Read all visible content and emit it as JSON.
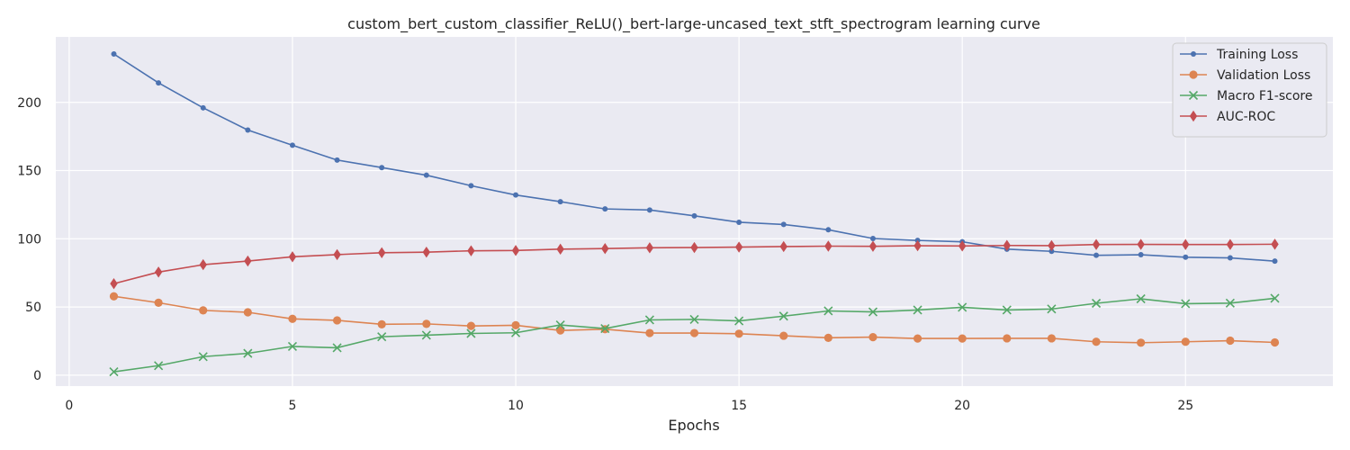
{
  "chart_data": {
    "type": "line",
    "title": "custom_bert_custom_classifier_ReLU()_bert-large-uncased_text_stft_spectrogram learning curve",
    "xlabel": "Epochs",
    "ylabel": "",
    "xlim": [
      -0.3,
      28.3
    ],
    "ylim": [
      -8,
      248
    ],
    "xticks": [
      0,
      5,
      10,
      15,
      20,
      25
    ],
    "yticks": [
      0,
      50,
      100,
      150,
      200
    ],
    "grid": true,
    "legend_position": "top-right",
    "x": [
      1,
      2,
      3,
      4,
      5,
      6,
      7,
      8,
      9,
      10,
      11,
      12,
      13,
      14,
      15,
      16,
      17,
      18,
      19,
      20,
      21,
      22,
      23,
      24,
      25,
      26,
      27
    ],
    "series": [
      {
        "name": "Training Loss",
        "color": "#4c72b0",
        "marker": "point",
        "values": [
          235.5,
          214.3,
          196.0,
          179.7,
          168.6,
          157.7,
          152.2,
          146.6,
          138.9,
          132.1,
          127.2,
          121.9,
          121.1,
          116.8,
          112.1,
          110.5,
          106.6,
          100.2,
          98.8,
          97.8,
          92.4,
          90.8,
          87.9,
          88.3,
          86.5,
          86.0,
          83.6
        ]
      },
      {
        "name": "Validation Loss",
        "color": "#dd8452",
        "marker": "circle",
        "values": [
          57.8,
          53.1,
          47.5,
          46.1,
          41.3,
          40.2,
          37.3,
          37.6,
          36.1,
          36.6,
          32.8,
          33.7,
          30.9,
          30.9,
          30.4,
          28.9,
          27.4,
          27.9,
          26.9,
          26.9,
          27.0,
          27.0,
          24.5,
          23.8,
          24.5,
          25.3,
          24.0
        ]
      },
      {
        "name": "Macro F1-score",
        "color": "#55a868",
        "marker": "x",
        "values": [
          2.5,
          7.0,
          13.6,
          16.0,
          21.1,
          20.1,
          28.2,
          29.3,
          30.6,
          31.1,
          36.8,
          34.2,
          40.5,
          40.9,
          39.8,
          43.3,
          47.1,
          46.4,
          47.8,
          49.8,
          47.8,
          48.5,
          52.7,
          56.0,
          52.4,
          52.8,
          56.4
        ]
      },
      {
        "name": "AUC-ROC",
        "color": "#c44e52",
        "marker": "diamond",
        "values": [
          67.1,
          75.6,
          81.0,
          83.7,
          86.8,
          88.4,
          89.8,
          90.2,
          91.2,
          91.4,
          92.4,
          92.8,
          93.4,
          93.6,
          93.9,
          94.3,
          94.6,
          94.5,
          94.9,
          94.7,
          95.1,
          95.0,
          95.8,
          95.9,
          95.8,
          95.8,
          96.0
        ]
      }
    ]
  }
}
